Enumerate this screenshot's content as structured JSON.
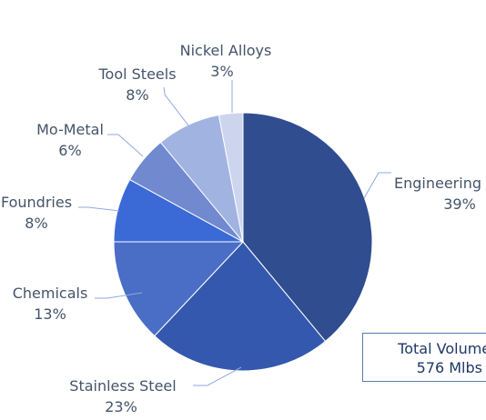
{
  "chart_data": {
    "type": "pie",
    "slices": [
      {
        "label": "Engineering",
        "value": 39,
        "value_label": "39%",
        "color": "#2F4D8F"
      },
      {
        "label": "Stainless Steel",
        "value": 23,
        "value_label": "23%",
        "color": "#3458AE"
      },
      {
        "label": "Chemicals",
        "value": 13,
        "value_label": "13%",
        "color": "#4A6DC6"
      },
      {
        "label": "Foundries",
        "value": 8,
        "value_label": "8%",
        "color": "#3B69D6"
      },
      {
        "label": "Mo-Metal",
        "value": 6,
        "value_label": "6%",
        "color": "#7089CF"
      },
      {
        "label": "Tool Steels",
        "value": 8,
        "value_label": "8%",
        "color": "#A1B3E1"
      },
      {
        "label": "Nickel Alloys",
        "value": 3,
        "value_label": "3%",
        "color": "#CDD5EE"
      }
    ],
    "start_angle_deg": 0,
    "direction": "clockwise"
  },
  "annotation": {
    "line1": "Total Volume Y",
    "line2": "576 Mlbs"
  }
}
